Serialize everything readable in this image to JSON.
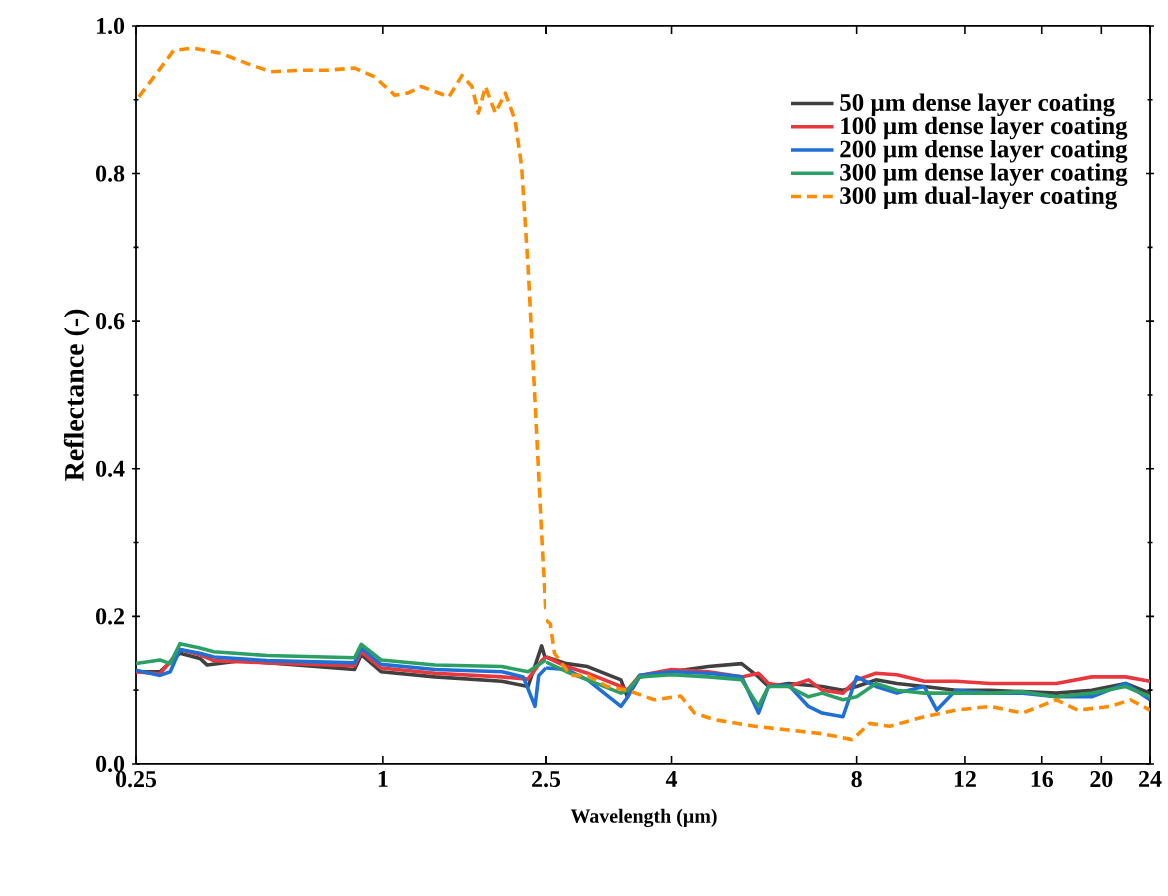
{
  "chart_data": [
    {
      "type": "line",
      "ylabel": "Reflectance (-)",
      "log": "x",
      "xlim": [
        0.25,
        2.5
      ],
      "ylim": [
        0,
        1
      ],
      "xticks": [
        0.25,
        1,
        {
          "value": 2.5,
          "label": null
        }
      ],
      "yticks": [
        {
          "value": 0,
          "label": "0.0"
        },
        {
          "value": 0.2,
          "label": "0.2"
        },
        {
          "value": 0.4,
          "label": "0.4"
        },
        {
          "value": 0.6,
          "label": "0.6"
        },
        {
          "value": 0.8,
          "label": "0.8"
        },
        {
          "value": 1,
          "label": "1.0"
        }
      ],
      "series": [
        {
          "color": "#404040",
          "x": [
            0.25,
            0.286,
            0.32,
            0.358,
            0.373,
            0.45,
            0.853,
            0.886,
            0.99,
            1.34,
            1.95,
            2.26,
            2.44,
            2.5
          ],
          "values": [
            0.125,
            0.125,
            0.15,
            0.143,
            0.134,
            0.14,
            0.128,
            0.148,
            0.125,
            0.118,
            0.112,
            0.105,
            0.16,
            0.14
          ]
        },
        {
          "color": "#e8383d",
          "x": [
            0.25,
            0.286,
            0.32,
            0.358,
            0.387,
            0.522,
            0.853,
            0.886,
            0.99,
            1.34,
            1.95,
            2.26,
            2.44,
            2.5
          ],
          "values": [
            0.125,
            0.122,
            0.155,
            0.148,
            0.14,
            0.137,
            0.133,
            0.152,
            0.13,
            0.123,
            0.118,
            0.115,
            0.14,
            0.145
          ]
        },
        {
          "color": "#1f6fd6",
          "x": [
            0.25,
            0.286,
            0.303,
            0.32,
            0.358,
            0.387,
            0.522,
            0.853,
            0.886,
            0.99,
            1.34,
            1.95,
            2.2,
            2.35,
            2.4,
            2.5
          ],
          "values": [
            0.127,
            0.12,
            0.125,
            0.155,
            0.15,
            0.145,
            0.14,
            0.137,
            0.157,
            0.135,
            0.128,
            0.125,
            0.118,
            0.078,
            0.12,
            0.13
          ]
        },
        {
          "color": "#2ca064",
          "x": [
            0.25,
            0.286,
            0.303,
            0.32,
            0.358,
            0.387,
            0.522,
            0.853,
            0.886,
            0.99,
            1.34,
            1.95,
            2.26,
            2.5
          ],
          "values": [
            0.136,
            0.141,
            0.136,
            0.163,
            0.157,
            0.152,
            0.147,
            0.144,
            0.162,
            0.141,
            0.134,
            0.132,
            0.125,
            0.141
          ]
        },
        {
          "color": "#ff8c00",
          "line_style": "dashed",
          "x": [
            0.254,
            0.281,
            0.309,
            0.345,
            0.402,
            0.467,
            0.533,
            0.63,
            0.733,
            0.853,
            0.955,
            1.07,
            1.15,
            1.24,
            1.45,
            1.56,
            1.65,
            1.71,
            1.78,
            1.88,
            1.99,
            2.1,
            2.18,
            2.26,
            2.35,
            2.44,
            2.5
          ],
          "values": [
            0.904,
            0.936,
            0.967,
            0.97,
            0.963,
            0.949,
            0.938,
            0.94,
            0.94,
            0.943,
            0.931,
            0.906,
            0.909,
            0.918,
            0.904,
            0.933,
            0.918,
            0.882,
            0.918,
            0.882,
            0.909,
            0.873,
            0.81,
            0.675,
            0.493,
            0.312,
            0.203
          ]
        }
      ]
    },
    {
      "type": "line",
      "xlabel": "Wavelength (µm)",
      "log": "x",
      "xlim": [
        2.5,
        24
      ],
      "ylim": [
        0,
        1
      ],
      "tick_labels": "x",
      "legend": "top right",
      "xticks": [
        2.5,
        4,
        8,
        12,
        16,
        20,
        24
      ],
      "yticks": [
        {
          "value": 0,
          "label": null
        },
        {
          "value": 0.2,
          "label": null
        },
        {
          "value": 0.4,
          "label": null
        },
        {
          "value": 0.6,
          "label": null
        },
        {
          "value": 0.8,
          "label": null
        },
        {
          "value": 1,
          "label": null
        }
      ],
      "series": [
        {
          "name": "50 µm dense layer coating",
          "color": "#404040",
          "x": [
            2.5,
            2.7,
            2.92,
            3.31,
            3.39,
            3.55,
            4.0,
            4.59,
            5.2,
            5.54,
            5.75,
            6.2,
            7.03,
            7.6,
            8.0,
            8.6,
            9.3,
            10.3,
            11.6,
            13.2,
            14.9,
            16.9,
            19.3,
            21.9,
            24
          ],
          "values": [
            0.145,
            0.136,
            0.132,
            0.114,
            0.091,
            0.118,
            0.125,
            0.132,
            0.136,
            0.118,
            0.105,
            0.109,
            0.105,
            0.1,
            0.105,
            0.114,
            0.109,
            0.105,
            0.1,
            0.1,
            0.098,
            0.096,
            0.1,
            0.109,
            0.096
          ]
        },
        {
          "name": "100 µm dense layer coating",
          "color": "#e8383d",
          "x": [
            2.5,
            2.7,
            2.92,
            3.31,
            3.39,
            3.55,
            4.0,
            4.59,
            5.2,
            5.54,
            5.75,
            6.2,
            6.68,
            7.03,
            7.6,
            8.0,
            8.6,
            9.3,
            10.3,
            11.6,
            13.2,
            14.9,
            16.9,
            19.3,
            21.9,
            24
          ],
          "values": [
            0.145,
            0.132,
            0.123,
            0.105,
            0.1,
            0.12,
            0.128,
            0.125,
            0.118,
            0.123,
            0.109,
            0.105,
            0.114,
            0.1,
            0.096,
            0.114,
            0.123,
            0.121,
            0.112,
            0.112,
            0.109,
            0.109,
            0.109,
            0.118,
            0.118,
            0.112
          ]
        },
        {
          "name": "200 µm dense layer coating",
          "color": "#1f6fd6",
          "x": [
            2.5,
            2.7,
            2.92,
            3.31,
            3.39,
            3.55,
            4.0,
            4.59,
            5.2,
            5.54,
            5.75,
            6.2,
            6.68,
            7.03,
            7.6,
            8.0,
            8.6,
            9.3,
            10.3,
            10.8,
            11.6,
            13.2,
            14.9,
            16.9,
            19.3,
            21.9,
            24
          ],
          "values": [
            0.13,
            0.128,
            0.114,
            0.078,
            0.09,
            0.12,
            0.125,
            0.123,
            0.118,
            0.069,
            0.105,
            0.107,
            0.078,
            0.069,
            0.064,
            0.118,
            0.105,
            0.096,
            0.105,
            0.073,
            0.1,
            0.096,
            0.096,
            0.091,
            0.091,
            0.109,
            0.087
          ]
        },
        {
          "name": "300 µm dense layer coating",
          "color": "#2ca064",
          "x": [
            2.5,
            2.7,
            2.92,
            3.31,
            3.39,
            3.55,
            4.0,
            4.59,
            5.2,
            5.54,
            5.75,
            6.2,
            6.68,
            7.03,
            7.6,
            8.0,
            8.6,
            9.3,
            10.3,
            11.6,
            13.2,
            14.9,
            16.9,
            19.3,
            21.9,
            24
          ],
          "values": [
            0.138,
            0.125,
            0.114,
            0.096,
            0.1,
            0.118,
            0.121,
            0.118,
            0.114,
            0.078,
            0.105,
            0.105,
            0.091,
            0.096,
            0.087,
            0.091,
            0.109,
            0.1,
            0.096,
            0.096,
            0.096,
            0.098,
            0.091,
            0.096,
            0.105,
            0.091
          ]
        },
        {
          "name": "300 µm dual-layer coating",
          "color": "#ff8c00",
          "line_style": "dashed",
          "x": [
            2.5,
            2.54,
            2.58,
            2.74,
            2.92,
            3.14,
            3.39,
            3.75,
            4.14,
            4.36,
            4.7,
            5.47,
            6.2,
            7.03,
            7.87,
            8.4,
            9.05,
            10.3,
            11.6,
            13.2,
            14.9,
            16.9,
            18.3,
            20.7,
            22.3,
            24
          ],
          "values": [
            0.195,
            0.19,
            0.15,
            0.12,
            0.12,
            0.105,
            0.1,
            0.087,
            0.092,
            0.069,
            0.06,
            0.051,
            0.046,
            0.041,
            0.033,
            0.055,
            0.051,
            0.064,
            0.073,
            0.078,
            0.069,
            0.087,
            0.073,
            0.078,
            0.087,
            0.073
          ]
        }
      ]
    }
  ]
}
